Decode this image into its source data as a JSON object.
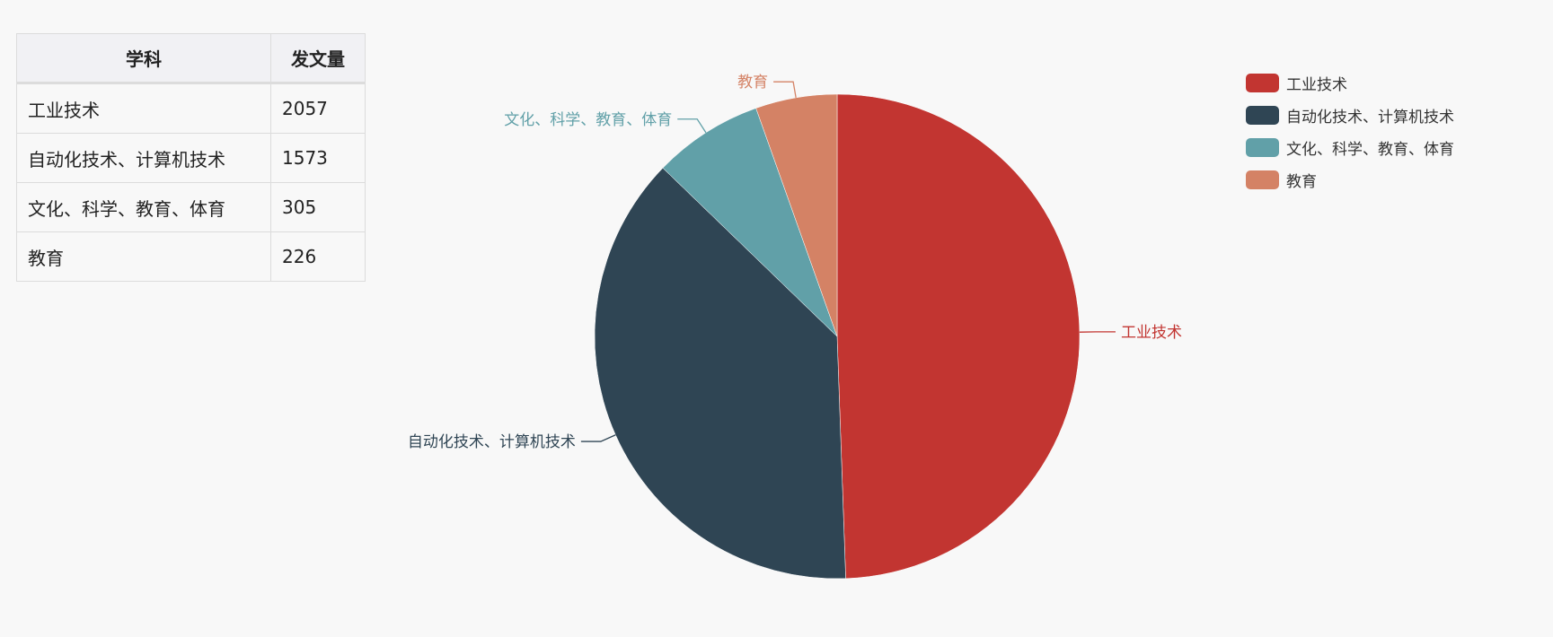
{
  "table": {
    "headers": [
      "学科",
      "发文量"
    ],
    "rows": [
      [
        "工业技术",
        "2057"
      ],
      [
        "自动化技术、计算机技术",
        "1573"
      ],
      [
        "文化、科学、教育、体育",
        "305"
      ],
      [
        "教育",
        "226"
      ]
    ]
  },
  "chart_data": {
    "type": "pie",
    "categories": [
      "工业技术",
      "自动化技术、计算机技术",
      "文化、科学、教育、体育",
      "教育"
    ],
    "values": [
      2057,
      1573,
      305,
      226
    ],
    "colors": [
      "#c23531",
      "#2f4554",
      "#61a0a8",
      "#d48265"
    ],
    "legend": "top-right",
    "start": "top, clockwise"
  }
}
